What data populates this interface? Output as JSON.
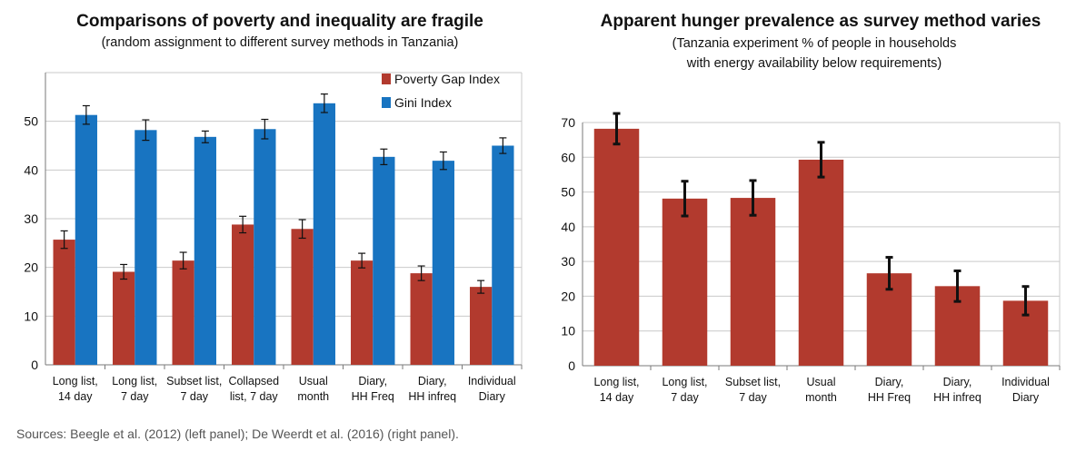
{
  "source": "Sources: Beegle et al. (2012) (left panel); De Weerdt et al. (2016) (right panel).",
  "chart_data": [
    {
      "type": "bar",
      "title": "Comparisons of poverty and inequality are fragile",
      "subtitle": [
        "(random assignment to different survey methods in Tanzania)"
      ],
      "categories": [
        [
          "Long list,",
          "14 day"
        ],
        [
          "Long list,",
          "7 day"
        ],
        [
          "Subset list,",
          "7 day"
        ],
        [
          "Collapsed",
          "list, 7 day"
        ],
        [
          "Usual",
          "month"
        ],
        [
          "Diary,",
          "HH Freq"
        ],
        [
          "Diary,",
          "HH infreq"
        ],
        [
          "Individual",
          "Diary"
        ]
      ],
      "ylim": [
        0,
        60
      ],
      "yticks": [
        0,
        10,
        20,
        30,
        40,
        50
      ],
      "legend_position": "top-right",
      "grid": true,
      "series": [
        {
          "name": "Poverty Gap Index",
          "color": "#b23a2e",
          "values": [
            25.7,
            19.1,
            21.4,
            28.8,
            27.9,
            21.4,
            18.8,
            16.0
          ],
          "errors": [
            1.8,
            1.5,
            1.7,
            1.7,
            1.9,
            1.5,
            1.5,
            1.3
          ]
        },
        {
          "name": "Gini Index",
          "color": "#1874c1",
          "values": [
            51.3,
            48.2,
            46.8,
            48.4,
            53.7,
            42.7,
            41.9,
            45.0
          ],
          "errors": [
            1.9,
            2.1,
            1.2,
            2.0,
            1.9,
            1.6,
            1.8,
            1.6
          ]
        }
      ]
    },
    {
      "type": "bar",
      "title": "Apparent hunger prevalence as survey method varies",
      "subtitle": [
        "(Tanzania experiment % of people in households",
        "with energy availability below requirements)"
      ],
      "categories": [
        [
          "Long list,",
          "14 day"
        ],
        [
          "Long list,",
          "7 day"
        ],
        [
          "Subset list,",
          "7 day"
        ],
        [
          "Usual",
          "month"
        ],
        [
          "Diary,",
          "HH Freq"
        ],
        [
          "Diary,",
          "HH infreq"
        ],
        [
          "Individual",
          "Diary"
        ]
      ],
      "ylim": [
        0,
        70
      ],
      "yticks": [
        0,
        10,
        20,
        30,
        40,
        50,
        60,
        70
      ],
      "grid": true,
      "series": [
        {
          "name": "",
          "color": "#b23a2e",
          "values": [
            68.2,
            48.1,
            48.3,
            59.3,
            26.6,
            22.9,
            18.7
          ],
          "errors": [
            4.4,
            5.0,
            5.0,
            5.0,
            4.6,
            4.4,
            4.1
          ]
        }
      ]
    }
  ]
}
